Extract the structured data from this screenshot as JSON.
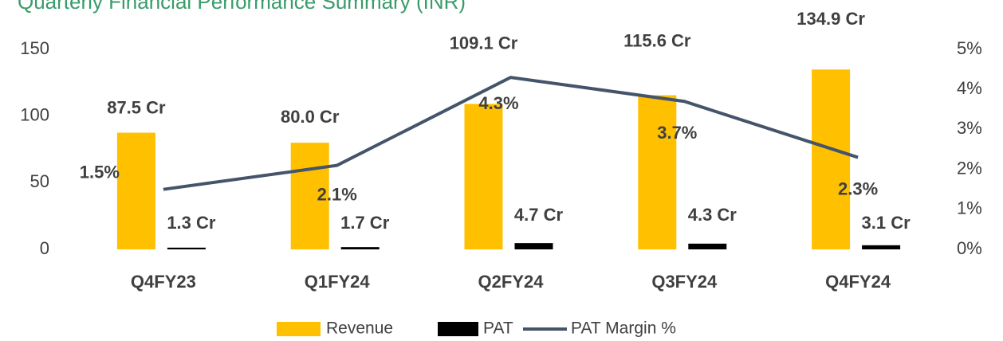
{
  "chart_data": {
    "type": "bar_line",
    "title": "Quarterly Financial Performance Summary (INR)",
    "categories": [
      "Q4FY23",
      "Q1FY24",
      "Q2FY24",
      "Q3FY24",
      "Q4FY24"
    ],
    "series": [
      {
        "name": "Revenue",
        "color": "#FFC000",
        "type": "bar",
        "values": [
          87.5,
          80.0,
          109.1,
          115.6,
          134.9
        ],
        "value_labels": [
          "87.5 Cr",
          "80.0 Cr",
          "109.1 Cr",
          "115.6 Cr",
          "134.9 Cr"
        ]
      },
      {
        "name": "PAT",
        "color": "#000000",
        "type": "bar",
        "values": [
          1.3,
          1.7,
          4.7,
          4.3,
          3.1
        ],
        "value_labels": [
          "1.3 Cr",
          "1.7 Cr",
          "4.7 Cr",
          "4.3 Cr",
          "3.1 Cr"
        ]
      },
      {
        "name": "PAT Margin %",
        "color": "#44546A",
        "type": "line",
        "axis": "y2",
        "values": [
          1.5,
          2.1,
          4.3,
          3.7,
          2.3
        ],
        "value_labels": [
          "1.5%",
          "2.1%",
          "4.3%",
          "3.7%",
          "2.3%"
        ]
      }
    ],
    "ylim": [
      0,
      150
    ],
    "yticks": [
      0,
      50,
      100,
      150
    ],
    "y2lim": [
      0,
      5
    ],
    "y2ticks": [
      {
        "value": 0,
        "label": "0%"
      },
      {
        "value": 1,
        "label": "1%"
      },
      {
        "value": 2,
        "label": "2%"
      },
      {
        "value": 3,
        "label": "3%"
      },
      {
        "value": 4,
        "label": "4%"
      },
      {
        "value": 5,
        "label": "5%"
      }
    ],
    "legend": "bottom"
  }
}
